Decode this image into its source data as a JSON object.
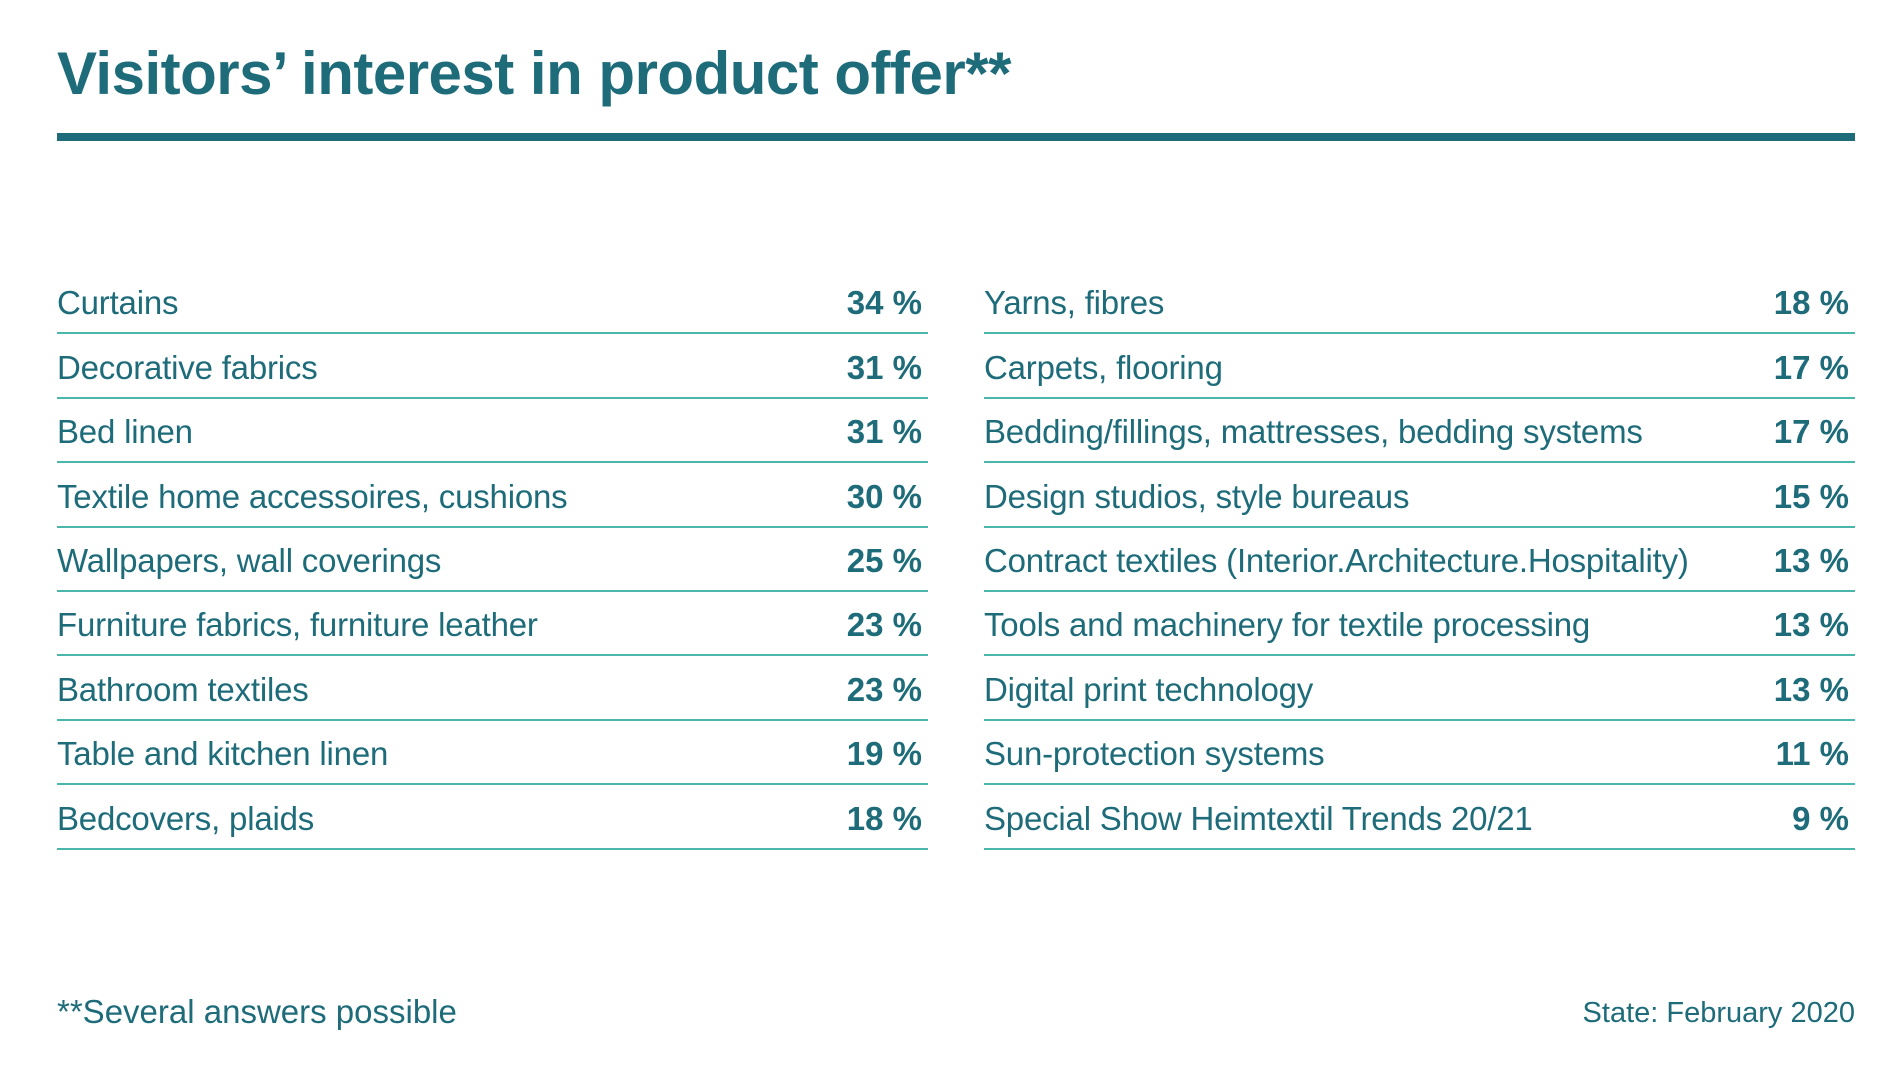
{
  "colors": {
    "primary": "#1e6c7a",
    "row_rule": "#4ab6ac",
    "background": "#ffffff"
  },
  "chart_data": {
    "type": "table",
    "title": "Visitors’ interest in product offer**",
    "unit": "%",
    "columns": [
      {
        "rows": [
          {
            "category": "Curtains",
            "value": 34,
            "display": "34 %"
          },
          {
            "category": "Decorative fabrics",
            "value": 31,
            "display": "31 %"
          },
          {
            "category": "Bed linen",
            "value": 31,
            "display": "31 %"
          },
          {
            "category": "Textile home accessoires, cushions",
            "value": 30,
            "display": "30 %"
          },
          {
            "category": "Wallpapers, wall coverings",
            "value": 25,
            "display": "25 %"
          },
          {
            "category": "Furniture fabrics, furniture leather",
            "value": 23,
            "display": "23 %"
          },
          {
            "category": "Bathroom textiles",
            "value": 23,
            "display": "23 %"
          },
          {
            "category": "Table and kitchen linen",
            "value": 19,
            "display": "19 %"
          },
          {
            "category": "Bedcovers, plaids",
            "value": 18,
            "display": "18 %"
          }
        ]
      },
      {
        "rows": [
          {
            "category": "Yarns, fibres",
            "value": 18,
            "display": "18 %"
          },
          {
            "category": "Carpets, flooring",
            "value": 17,
            "display": "17 %"
          },
          {
            "category": "Bedding/fillings, mattresses, bedding systems",
            "value": 17,
            "display": "17 %"
          },
          {
            "category": "Design studios, style bureaus",
            "value": 15,
            "display": "15 %"
          },
          {
            "category": "Contract textiles (Interior.Architecture.Hospitality)",
            "value": 13,
            "display": "13 %"
          },
          {
            "category": "Tools and machinery for textile processing",
            "value": 13,
            "display": "13 %"
          },
          {
            "category": "Digital print technology",
            "value": 13,
            "display": "13 %"
          },
          {
            "category": "Sun-protection systems",
            "value": 11,
            "display": "11 %"
          },
          {
            "category": "Special Show Heimtextil Trends 20/21",
            "value": 9,
            "display": "9 %"
          }
        ]
      }
    ],
    "footnote": "**Several answers possible",
    "state": "State: February 2020"
  }
}
